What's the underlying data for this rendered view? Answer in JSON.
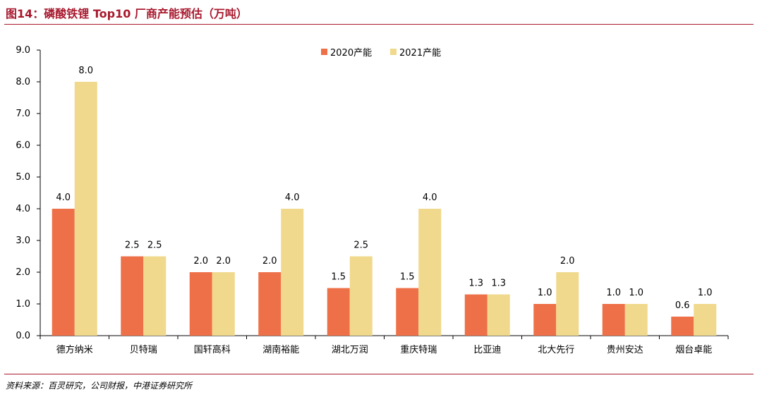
{
  "header": {
    "title": "图14：磷酸铁锂 Top10 厂商产能预估（万吨）"
  },
  "footer": {
    "source": "资料来源：百灵研究，公司财报，中港证券研究所"
  },
  "chart_data": {
    "type": "bar",
    "title": "",
    "xlabel": "",
    "ylabel": "",
    "categories": [
      "德方纳米",
      "贝特瑞",
      "国轩高科",
      "湖南裕能",
      "湖北万润",
      "重庆特瑞",
      "比亚迪",
      "北大先行",
      "贵州安达",
      "烟台卓能"
    ],
    "series": [
      {
        "name": "2020产能",
        "color": "#ee7048",
        "values": [
          4.0,
          2.5,
          2.0,
          2.0,
          1.5,
          1.5,
          1.3,
          1.0,
          1.0,
          0.6
        ]
      },
      {
        "name": "2021产能",
        "color": "#f0d98c",
        "values": [
          8.0,
          2.5,
          2.0,
          4.0,
          2.5,
          4.0,
          1.3,
          2.0,
          1.0,
          1.0
        ]
      }
    ],
    "ylim": [
      0,
      9
    ],
    "yticks": [
      "0.0",
      "1.0",
      "2.0",
      "3.0",
      "4.0",
      "5.0",
      "6.0",
      "7.0",
      "8.0",
      "9.0"
    ],
    "data_labels": true,
    "grid": false,
    "legend": "top-center"
  }
}
